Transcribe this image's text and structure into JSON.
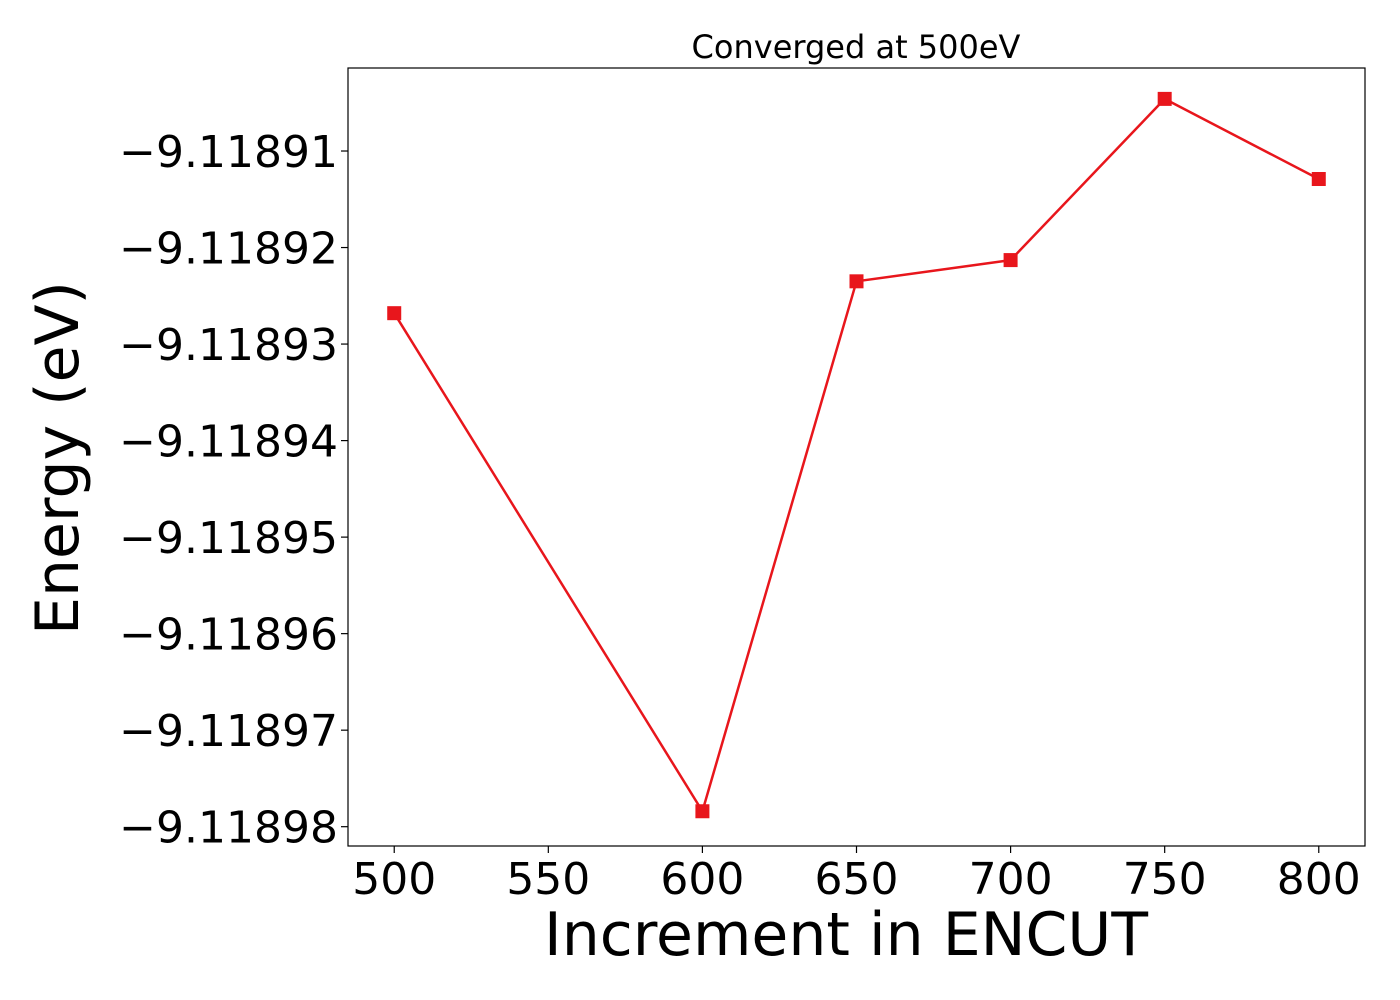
{
  "chart_data": {
    "type": "line",
    "title": "Converged at 500eV",
    "xlabel": "Increment in ENCUT",
    "ylabel": "Energy (eV)",
    "xlim": [
      485,
      815
    ],
    "ylim": [
      -9.118982,
      -9.1189014
    ],
    "x_ticks": [
      500,
      550,
      600,
      650,
      700,
      750,
      800
    ],
    "x_tick_labels": [
      "500",
      "550",
      "600",
      "650",
      "700",
      "750",
      "800"
    ],
    "y_ticks": [
      -9.11891,
      -9.11892,
      -9.11893,
      -9.11894,
      -9.11895,
      -9.11896,
      -9.11897,
      -9.11898
    ],
    "y_tick_labels": [
      "−9.11891",
      "−9.11892",
      "−9.11893",
      "−9.11894",
      "−9.11895",
      "−9.11896",
      "−9.11897",
      "−9.11898"
    ],
    "grid": false,
    "legend": false,
    "series": [
      {
        "color": "#e8161c",
        "marker": "square",
        "x": [
          500,
          600,
          650,
          700,
          750,
          800
        ],
        "y": [
          -9.1189268,
          -9.1189784,
          -9.1189235,
          -9.1189213,
          -9.1189046,
          -9.1189129
        ]
      }
    ]
  }
}
